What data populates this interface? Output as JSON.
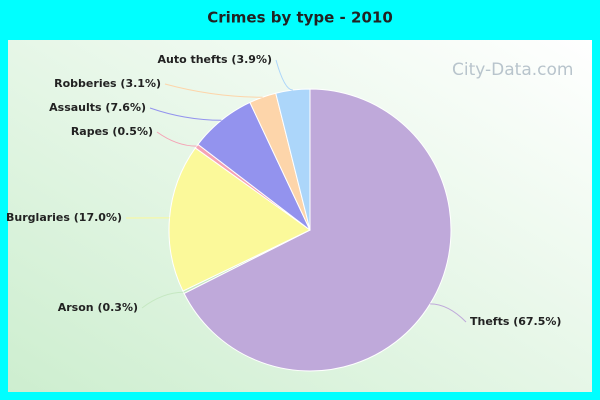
{
  "chart_data": {
    "type": "pie",
    "title": "Crimes by type - 2010",
    "watermark": "City-Data.com",
    "values": [
      67.5,
      0.3,
      17.0,
      0.5,
      7.6,
      3.1,
      3.9
    ],
    "value_labels": [
      "Thefts (67.5%)",
      "Arson (0.3%)",
      "Burglaries (17.0%)",
      "Rapes (0.5%)",
      "Assaults (7.6%)",
      "Robberies (3.1%)",
      "Auto thefts (3.9%)"
    ],
    "colors": [
      "#bfa9da",
      "#c6e8c2",
      "#fbf99a",
      "#f5a3b5",
      "#9393ee",
      "#fdd5aa",
      "#acd6fa"
    ]
  }
}
